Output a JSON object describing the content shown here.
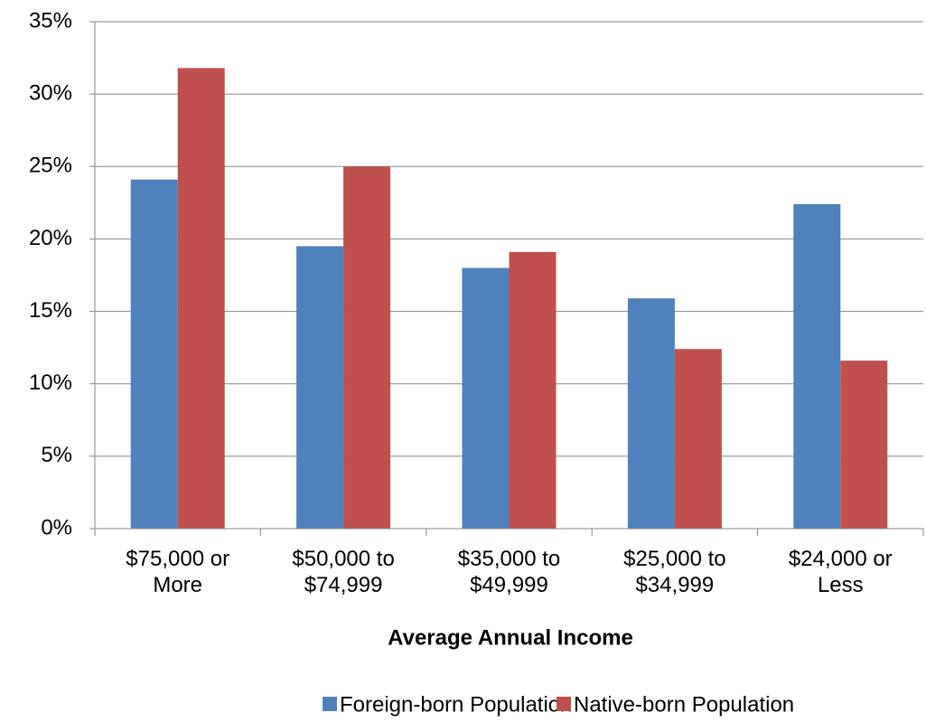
{
  "chart_data": {
    "type": "bar",
    "x_label": "Average Annual Income",
    "categories": [
      "$75,000 or More",
      "$50,000 to $74,999",
      "$35,000 to $49,999",
      "$25,000 to $34,999",
      "$24,000 or Less"
    ],
    "series": [
      {
        "name": "Foreign-born Population",
        "color": "#4f81bd",
        "values": [
          24.1,
          19.5,
          18.0,
          15.9,
          22.4
        ]
      },
      {
        "name": "Native-born Population",
        "color": "#c0504d",
        "values": [
          31.8,
          25.0,
          19.1,
          12.4,
          11.6
        ]
      }
    ],
    "ylim": [
      0,
      35
    ],
    "yticks": [
      {
        "value": 0,
        "label": "0%"
      },
      {
        "value": 5,
        "label": "5%"
      },
      {
        "value": 10,
        "label": "10%"
      },
      {
        "value": 15,
        "label": "15%"
      },
      {
        "value": 20,
        "label": "20%"
      },
      {
        "value": 25,
        "label": "25%"
      },
      {
        "value": 30,
        "label": "30%"
      },
      {
        "value": 35,
        "label": "35%"
      }
    ],
    "grid": true,
    "legend": "bottom"
  }
}
